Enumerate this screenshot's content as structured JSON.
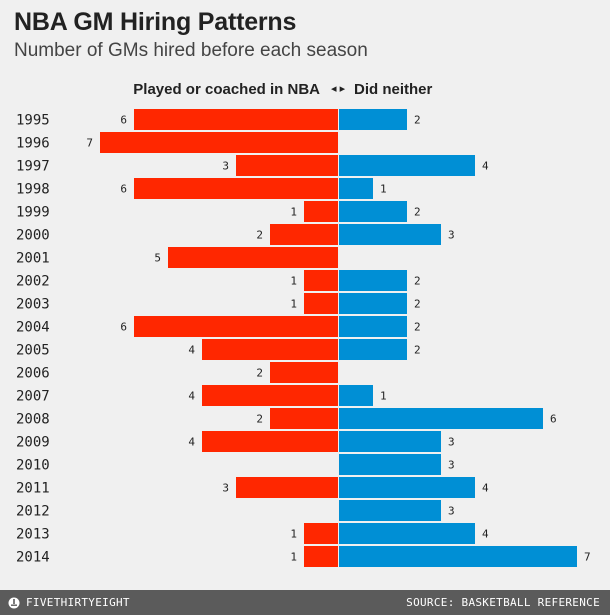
{
  "header": {
    "title": "NBA GM Hiring Patterns",
    "subtitle": "Number of GMs hired before each season"
  },
  "legend": {
    "left_label": "Played or coached in NBA",
    "arrows": "◂ ▸",
    "right_label": "Did neither"
  },
  "colors": {
    "left_series": "#ff2700",
    "right_series": "#008fd5",
    "background": "#f0f0f0",
    "footer": "#5b5b5b"
  },
  "chart_data": {
    "type": "bar",
    "orientation": "diverging-horizontal",
    "categories": [
      "1995",
      "1996",
      "1997",
      "1998",
      "1999",
      "2000",
      "2001",
      "2002",
      "2003",
      "2004",
      "2005",
      "2006",
      "2007",
      "2008",
      "2009",
      "2010",
      "2011",
      "2012",
      "2013",
      "2014"
    ],
    "series": [
      {
        "name": "Played or coached in NBA",
        "values": [
          6,
          7,
          3,
          6,
          1,
          2,
          5,
          1,
          1,
          6,
          4,
          2,
          4,
          2,
          4,
          0,
          3,
          0,
          1,
          1
        ]
      },
      {
        "name": "Did neither",
        "values": [
          2,
          0,
          4,
          1,
          2,
          3,
          0,
          2,
          2,
          2,
          2,
          0,
          1,
          6,
          3,
          3,
          4,
          3,
          4,
          7
        ]
      }
    ],
    "title": "NBA GM Hiring Patterns",
    "subtitle": "Number of GMs hired before each season",
    "xlim": [
      -7,
      7
    ],
    "grid": false
  },
  "footer": {
    "brand": "FIVETHIRTYEIGHT",
    "source": "SOURCE: BASKETBALL REFERENCE"
  }
}
